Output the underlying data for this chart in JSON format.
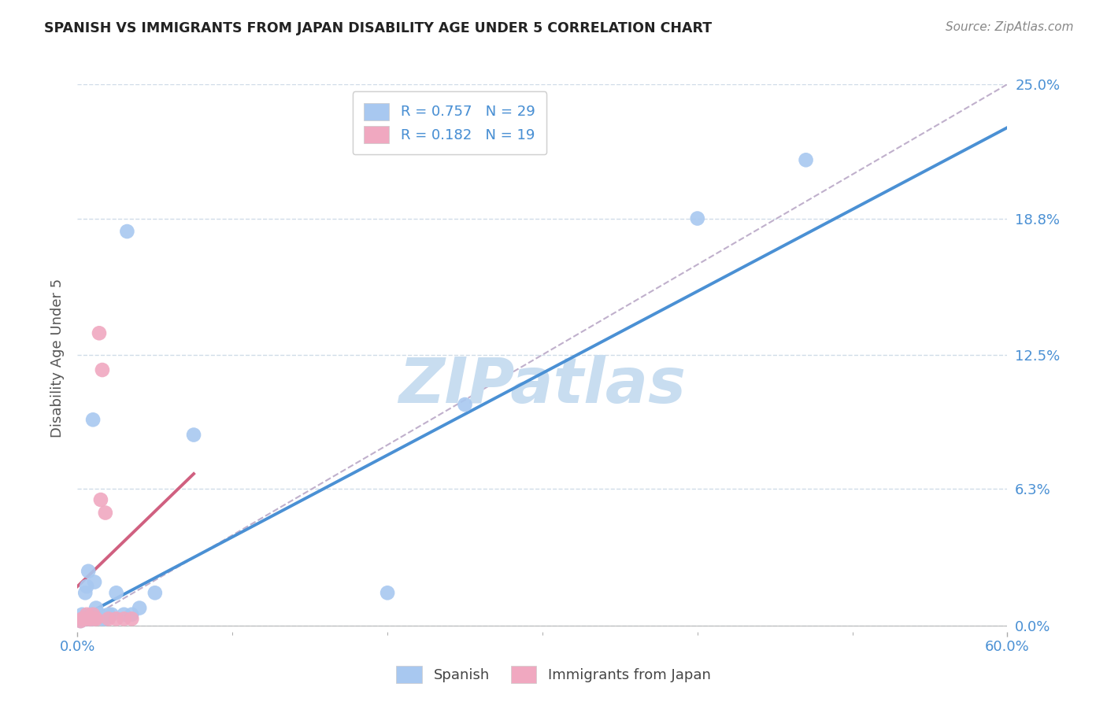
{
  "title": "SPANISH VS IMMIGRANTS FROM JAPAN DISABILITY AGE UNDER 5 CORRELATION CHART",
  "source": "Source: ZipAtlas.com",
  "ylabel_values": [
    0.0,
    6.3,
    12.5,
    18.8,
    25.0
  ],
  "ylabel_labels": [
    "0.0%",
    "6.3%",
    "12.5%",
    "18.8%",
    "25.0%"
  ],
  "xlim": [
    0.0,
    60.0
  ],
  "ylim": [
    -0.3,
    25.0
  ],
  "ylabel": "Disability Age Under 5",
  "watermark": "ZIPatlas",
  "blue_scatter_x": [
    0.2,
    0.3,
    0.4,
    0.5,
    0.6,
    0.7,
    0.8,
    0.9,
    1.0,
    1.1,
    1.2,
    1.4,
    1.6,
    1.8,
    2.0,
    2.5,
    3.0,
    3.5,
    4.0,
    5.0,
    7.5,
    20.0,
    25.0,
    40.0,
    47.0,
    0.5,
    1.0,
    2.2,
    3.2
  ],
  "blue_scatter_y": [
    0.2,
    0.5,
    0.3,
    1.5,
    1.8,
    2.5,
    0.3,
    0.5,
    0.3,
    2.0,
    0.8,
    0.5,
    0.3,
    0.3,
    0.5,
    1.5,
    0.5,
    0.5,
    0.8,
    1.5,
    8.8,
    1.5,
    10.2,
    18.8,
    21.5,
    0.3,
    9.5,
    0.5,
    18.2
  ],
  "pink_scatter_x": [
    0.2,
    0.3,
    0.5,
    0.6,
    0.8,
    1.0,
    1.2,
    1.5,
    1.8,
    2.0,
    2.5,
    3.0,
    3.5,
    0.4,
    0.7,
    0.9,
    1.1,
    1.4,
    1.6
  ],
  "pink_scatter_y": [
    0.2,
    0.3,
    0.3,
    0.5,
    0.3,
    0.5,
    0.3,
    5.8,
    5.2,
    0.3,
    0.3,
    0.3,
    0.3,
    0.3,
    0.3,
    0.3,
    0.3,
    13.5,
    11.8
  ],
  "blue_line_x": [
    0.0,
    60.0
  ],
  "blue_line_y": [
    0.3,
    23.0
  ],
  "pink_line_x": [
    0.0,
    7.5
  ],
  "pink_line_y": [
    1.8,
    7.0
  ],
  "dashed_line_x": [
    0.0,
    60.0
  ],
  "dashed_line_y": [
    0.0,
    25.0
  ],
  "blue_color": "#4a90d4",
  "blue_scatter_color": "#a8c8f0",
  "pink_color": "#d06080",
  "pink_scatter_color": "#f0a8c0",
  "dashed_color": "#c0b0cc",
  "title_color": "#222222",
  "axis_color": "#4a90d4",
  "watermark_color": "#c8ddf0",
  "grid_color": "#d0dce8",
  "source_color": "#888888",
  "bottom_legend_color": "#444444"
}
